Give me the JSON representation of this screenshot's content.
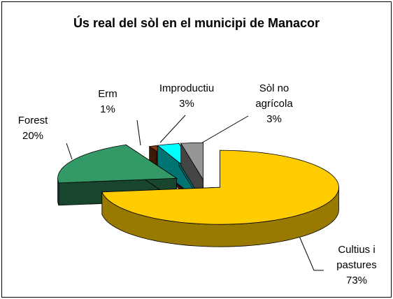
{
  "chart_data": {
    "type": "pie",
    "title": "Ús real del sòl en el municipi de Manacor",
    "categories": [
      "Cultius i pastures",
      "Forest",
      "Erm",
      "Improductiu",
      "Sòl no agrícola"
    ],
    "values": [
      73,
      20,
      1,
      3,
      3
    ],
    "value_labels": [
      "73%",
      "20%",
      "1%",
      "3%",
      "3%"
    ],
    "colors": [
      "#ffcc00",
      "#339966",
      "#8b3a12",
      "#00ffff",
      "#969696"
    ]
  }
}
